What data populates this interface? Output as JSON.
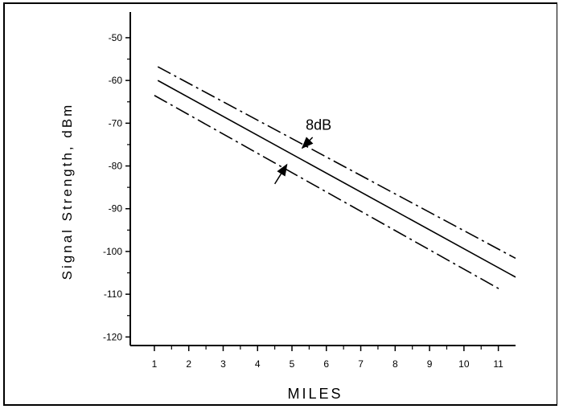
{
  "chart_data": {
    "type": "line",
    "title": "",
    "xlabel": "MILES",
    "ylabel": "Signal Strength, dBm",
    "xlim": [
      0.3,
      11.5
    ],
    "ylim": [
      -122,
      -44
    ],
    "xticks": [
      1,
      2,
      3,
      4,
      5,
      6,
      7,
      8,
      9,
      10,
      11
    ],
    "xtick_labels": [
      "1",
      "2",
      "3",
      "4",
      "5",
      "6",
      "7",
      "8",
      "9",
      "10",
      "11"
    ],
    "yticks": [
      -50,
      -60,
      -70,
      -80,
      -90,
      -100,
      -110,
      -120
    ],
    "ytick_labels": [
      "-50",
      "-60",
      "-70",
      "-80",
      "-90",
      "-100",
      "-110",
      "-120"
    ],
    "grid": false,
    "series": [
      {
        "style": "dash-dot",
        "x": [
          1.1,
          11.5
        ],
        "y": [
          -56.8,
          -101.6
        ]
      },
      {
        "style": "solid",
        "x": [
          1.1,
          11.5
        ],
        "y": [
          -60,
          -106
        ]
      },
      {
        "style": "dash-dot",
        "x": [
          1.0,
          11.1
        ],
        "y": [
          -63.5,
          -109.1
        ]
      }
    ],
    "annotations": [
      {
        "text": "8dB",
        "x": 5.4,
        "y": -71.5,
        "arrow_to": [
          5.3,
          -75.8
        ]
      },
      {
        "text": "",
        "arrow_from": [
          4.5,
          -84.2
        ],
        "arrow_to": [
          4.85,
          -79.7
        ]
      }
    ]
  }
}
